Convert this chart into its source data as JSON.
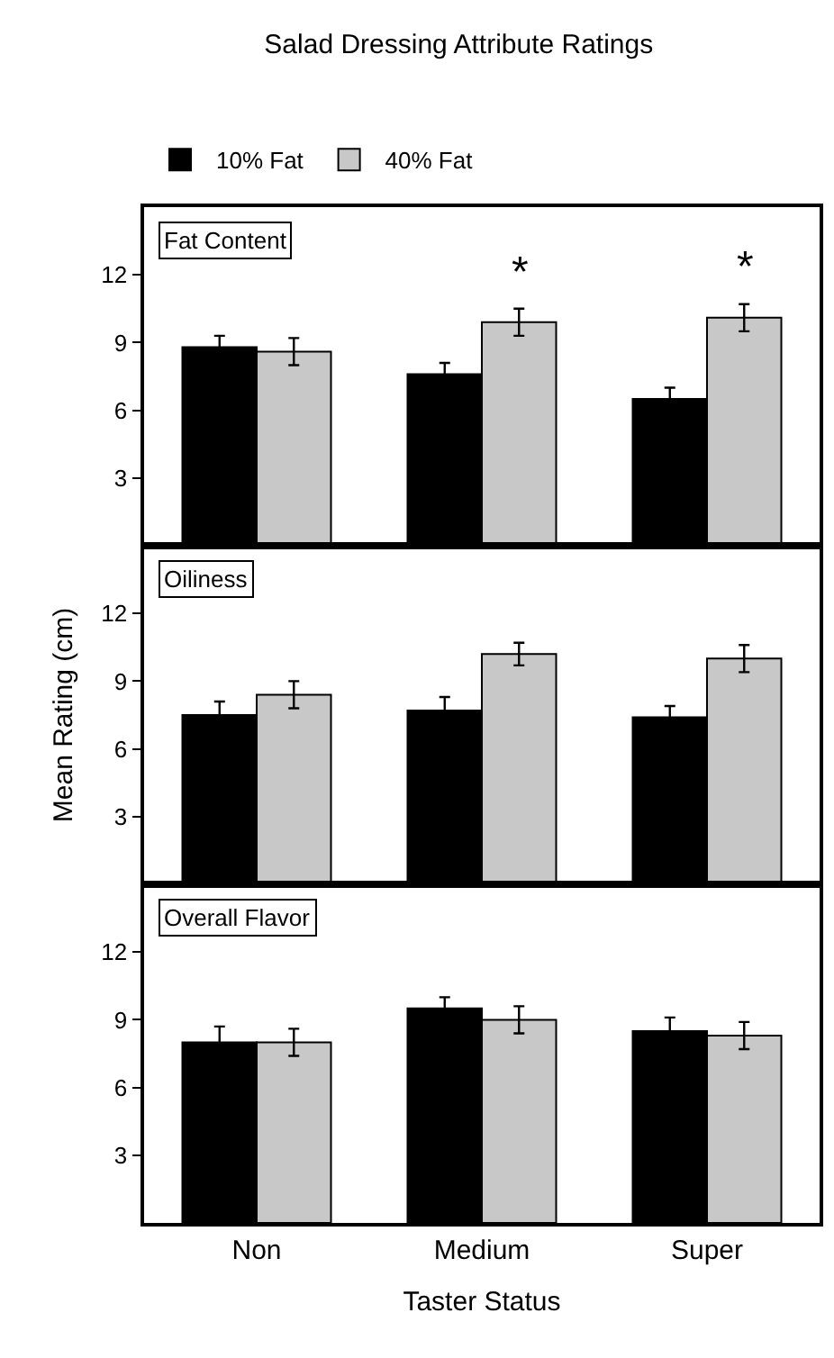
{
  "chart_data": [
    {
      "type": "bar",
      "title": "Salad Dressing Attribute Ratings",
      "subtitle": "Fat Content",
      "categories": [
        "Non",
        "Medium",
        "Super"
      ],
      "ylim": [
        0,
        15
      ],
      "yticks": [
        3,
        6,
        9,
        12
      ],
      "tick_labels": "y",
      "legend": "top",
      "series": [
        {
          "name": "10% Fat",
          "color": "#000000",
          "values": [
            8.8,
            7.6,
            6.5
          ],
          "errors": [
            0.5,
            0.5,
            0.5
          ]
        },
        {
          "name": "40% Fat",
          "color": "#c8c8c8",
          "values": [
            8.6,
            9.9,
            10.1
          ],
          "errors": [
            0.6,
            0.6,
            0.6
          ]
        }
      ],
      "annotations": [
        {
          "text": "*",
          "x": "Medium",
          "y": 9.9
        },
        {
          "text": "*",
          "x": "Super",
          "y": 10.1
        }
      ]
    },
    {
      "type": "bar",
      "subtitle": "Oiliness",
      "ylabel": "Mean Rating (cm)",
      "categories": [
        "Non",
        "Medium",
        "Super"
      ],
      "ylim": [
        0,
        15
      ],
      "yticks": [
        3,
        6,
        9,
        12
      ],
      "tick_labels": "y",
      "series": [
        {
          "color": "#000000",
          "values": [
            7.5,
            7.7,
            7.4
          ],
          "errors": [
            0.6,
            0.6,
            0.5
          ]
        },
        {
          "color": "#c8c8c8",
          "values": [
            8.4,
            10.2,
            10.0
          ],
          "errors": [
            0.6,
            0.5,
            0.6
          ]
        }
      ]
    },
    {
      "type": "bar",
      "subtitle": "Overall Flavor",
      "xlabel": "Taster Status",
      "categories": [
        "Non",
        "Medium",
        "Super"
      ],
      "ylim": [
        0,
        15
      ],
      "yticks": [
        3,
        6,
        9,
        12
      ],
      "series": [
        {
          "color": "#000000",
          "values": [
            8.0,
            9.5,
            8.5
          ],
          "errors": [
            0.7,
            0.5,
            0.6
          ]
        },
        {
          "color": "#c8c8c8",
          "values": [
            8.0,
            9.0,
            8.3
          ],
          "errors": [
            0.6,
            0.6,
            0.6
          ]
        }
      ]
    }
  ]
}
